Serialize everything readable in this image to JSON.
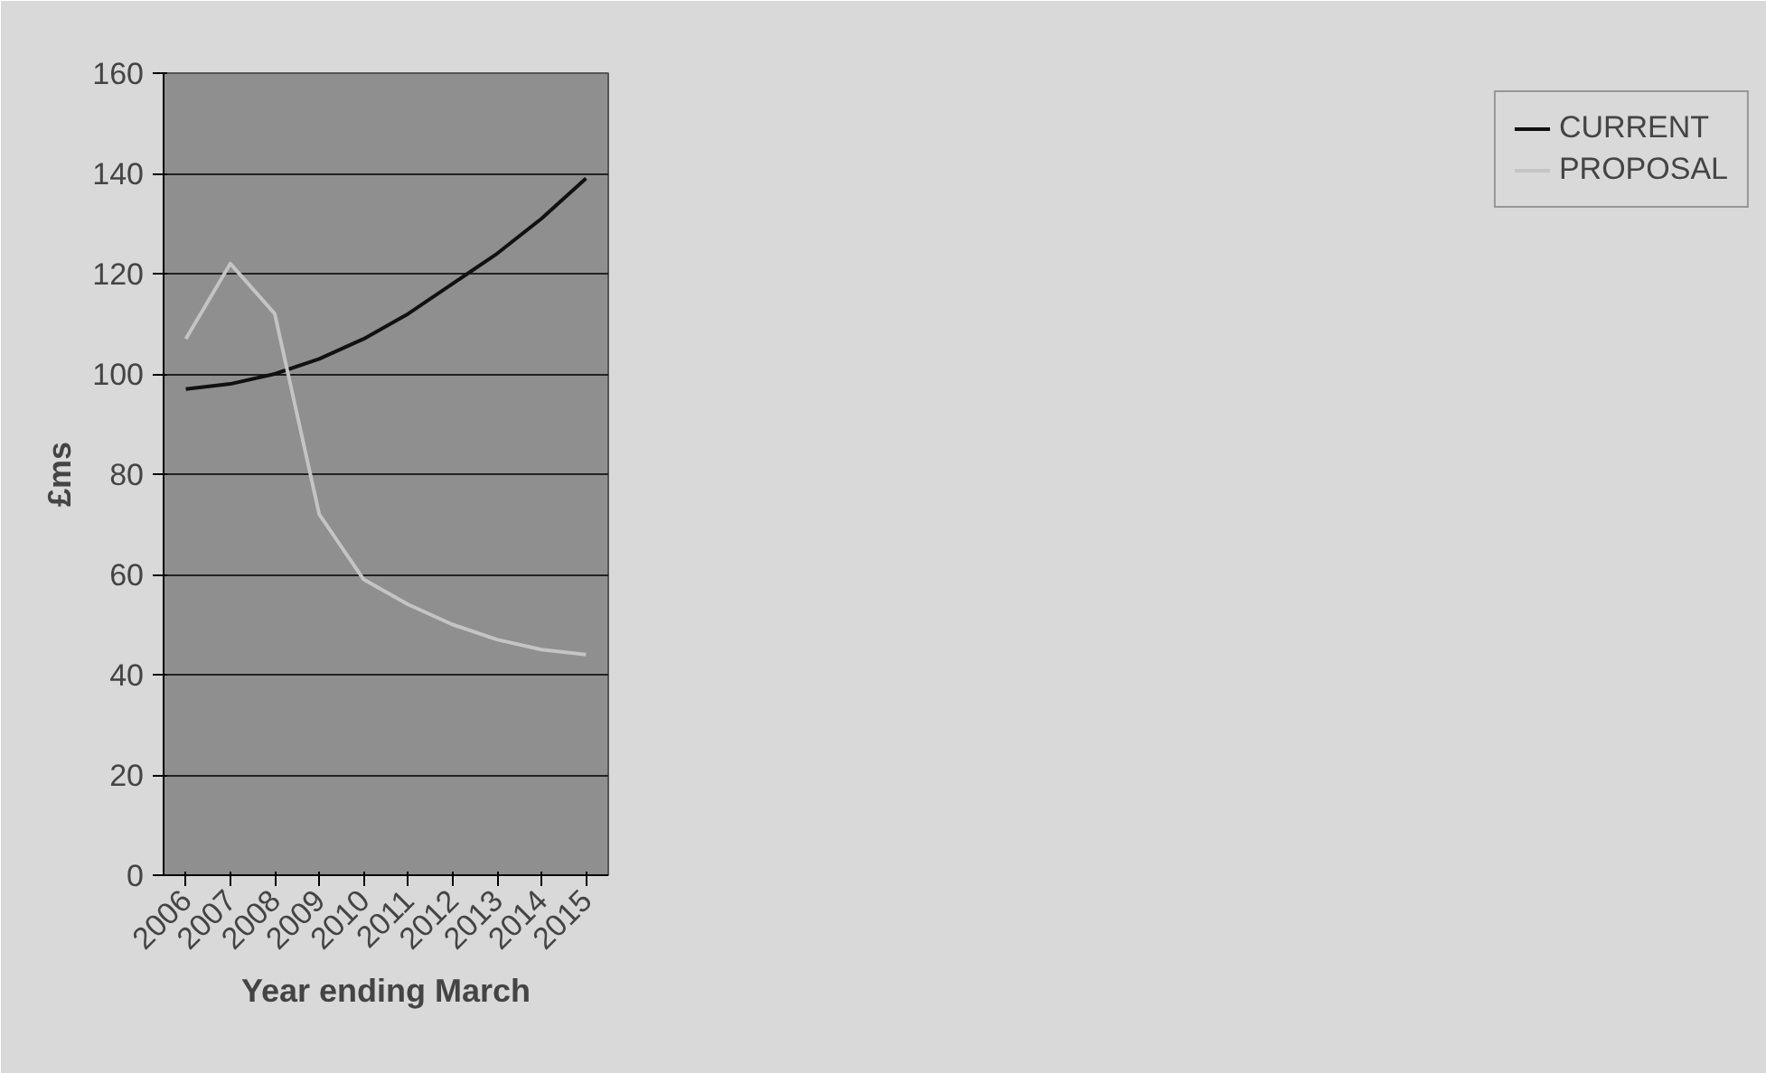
{
  "chart_data": {
    "type": "line",
    "xlabel": "Year ending March",
    "ylabel": "£ms",
    "categories": [
      "2006",
      "2007",
      "2008",
      "2009",
      "2010",
      "2011",
      "2012",
      "2013",
      "2014",
      "2015"
    ],
    "series": [
      {
        "name": "CURRENT",
        "color": "#111111",
        "values": [
          97,
          98,
          100,
          103,
          107,
          112,
          118,
          124,
          131,
          139
        ]
      },
      {
        "name": "PROPOSAL",
        "color": "#c4c4c4",
        "values": [
          107,
          122,
          112,
          72,
          59,
          54,
          50,
          47,
          45,
          44
        ]
      }
    ],
    "ylim": [
      0,
      160
    ],
    "yticks": [
      0,
      20,
      40,
      60,
      80,
      100,
      120,
      140,
      160
    ],
    "grid": "y",
    "legend": "right",
    "marker": "none",
    "line_style": "solid"
  }
}
